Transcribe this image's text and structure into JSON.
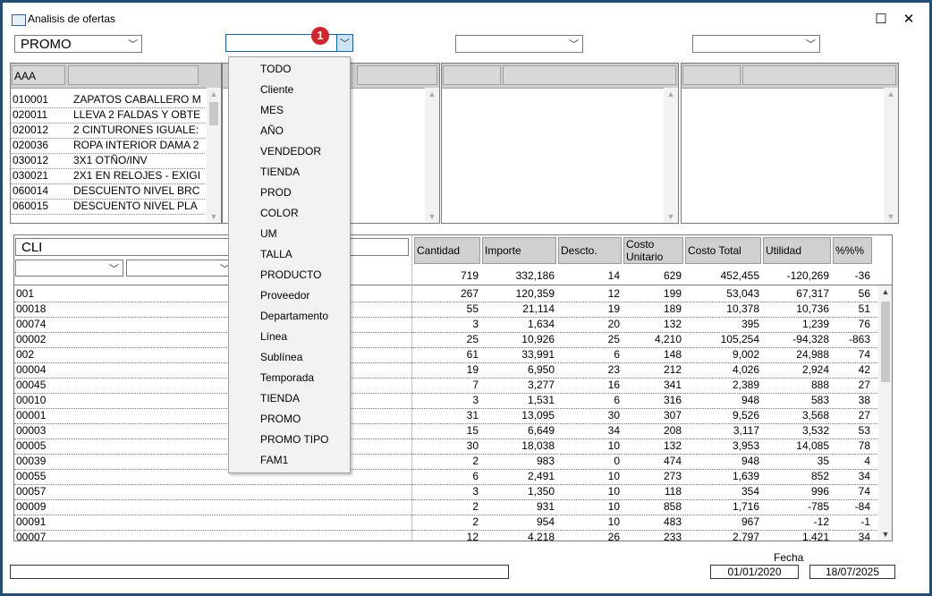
{
  "window": {
    "title": "Analisis de ofertas",
    "maximize_icon": "maximize-icon",
    "close_icon": "close-icon"
  },
  "filters": [
    {
      "value": "PROMO"
    },
    {
      "value": "",
      "open": true,
      "badge": "1"
    },
    {
      "value": ""
    },
    {
      "value": ""
    }
  ],
  "dropdown_options": [
    "TODO",
    "Cliente",
    "MES",
    "AÑO",
    "VENDEDOR",
    "TIENDA",
    "PROD",
    "COLOR",
    "UM",
    "TALLA",
    "PRODUCTO",
    "Proveedor",
    "Departamento",
    "Línea",
    "Sublínea",
    "Temporada",
    "TIENDA",
    "PROMO",
    "PROMO TIPO",
    "FAM1"
  ],
  "panel1": {
    "header": "AAA",
    "rows": [
      {
        "code": "010001",
        "desc": "ZAPATOS CABALLERO M"
      },
      {
        "code": "020011",
        "desc": "LLEVA 2 FALDAS Y OBTE"
      },
      {
        "code": "020012",
        "desc": "2 CINTURONES IGUALE:"
      },
      {
        "code": "020036",
        "desc": "ROPA INTERIOR DAMA 2"
      },
      {
        "code": "030012",
        "desc": "3X1 OTÑO/INV"
      },
      {
        "code": "030021",
        "desc": "2X1 EN RELOJES - EXIGI"
      },
      {
        "code": "060014",
        "desc": "DESCUENTO NIVEL BRC"
      },
      {
        "code": "060015",
        "desc": "DESCUENTO NIVEL PLA"
      }
    ]
  },
  "grid": {
    "group_label": "CLI",
    "columns": [
      "Cantidad",
      "Importe",
      "Descto.",
      "Costo Unitario",
      "Costo Total",
      "Utilidad",
      "%%%"
    ],
    "totals": [
      "719",
      "332,186",
      "14",
      "629",
      "452,455",
      "-120,269",
      "-36"
    ],
    "rows": [
      {
        "code": "001",
        "vals": [
          "267",
          "120,359",
          "12",
          "199",
          "53,043",
          "67,317",
          "56"
        ]
      },
      {
        "code": "00018",
        "vals": [
          "55",
          "21,114",
          "19",
          "189",
          "10,378",
          "10,736",
          "51"
        ]
      },
      {
        "code": "00074",
        "vals": [
          "3",
          "1,634",
          "20",
          "132",
          "395",
          "1,239",
          "76"
        ]
      },
      {
        "code": "00002",
        "vals": [
          "25",
          "10,926",
          "25",
          "4,210",
          "105,254",
          "-94,328",
          "-863"
        ]
      },
      {
        "code": "002",
        "vals": [
          "61",
          "33,991",
          "6",
          "148",
          "9,002",
          "24,988",
          "74"
        ]
      },
      {
        "code": "00004",
        "vals": [
          "19",
          "6,950",
          "23",
          "212",
          "4,026",
          "2,924",
          "42"
        ]
      },
      {
        "code": "00045",
        "vals": [
          "7",
          "3,277",
          "16",
          "341",
          "2,389",
          "888",
          "27"
        ]
      },
      {
        "code": "00010",
        "vals": [
          "3",
          "1,531",
          "6",
          "316",
          "948",
          "583",
          "38"
        ]
      },
      {
        "code": "00001",
        "vals": [
          "31",
          "13,095",
          "30",
          "307",
          "9,526",
          "3,568",
          "27"
        ]
      },
      {
        "code": "00003",
        "vals": [
          "15",
          "6,649",
          "34",
          "208",
          "3,117",
          "3,532",
          "53"
        ]
      },
      {
        "code": "00005",
        "vals": [
          "30",
          "18,038",
          "10",
          "132",
          "3,953",
          "14,085",
          "78"
        ]
      },
      {
        "code": "00039",
        "vals": [
          "2",
          "983",
          "0",
          "474",
          "948",
          "35",
          "4"
        ]
      },
      {
        "code": "00055",
        "vals": [
          "6",
          "2,491",
          "10",
          "273",
          "1,639",
          "852",
          "34"
        ]
      },
      {
        "code": "00057",
        "vals": [
          "3",
          "1,350",
          "10",
          "118",
          "354",
          "996",
          "74"
        ]
      },
      {
        "code": "00009",
        "vals": [
          "2",
          "931",
          "10",
          "858",
          "1,716",
          "-785",
          "-84"
        ]
      },
      {
        "code": "00091",
        "vals": [
          "2",
          "954",
          "10",
          "483",
          "967",
          "-12",
          "-1"
        ]
      },
      {
        "code": "00007",
        "vals": [
          "12",
          "4,218",
          "26",
          "233",
          "2,797",
          "1,421",
          "34"
        ]
      }
    ]
  },
  "footer": {
    "fecha_label": "Fecha",
    "date_from": "01/01/2020",
    "date_to": "18/07/2025",
    "status_text": ""
  }
}
